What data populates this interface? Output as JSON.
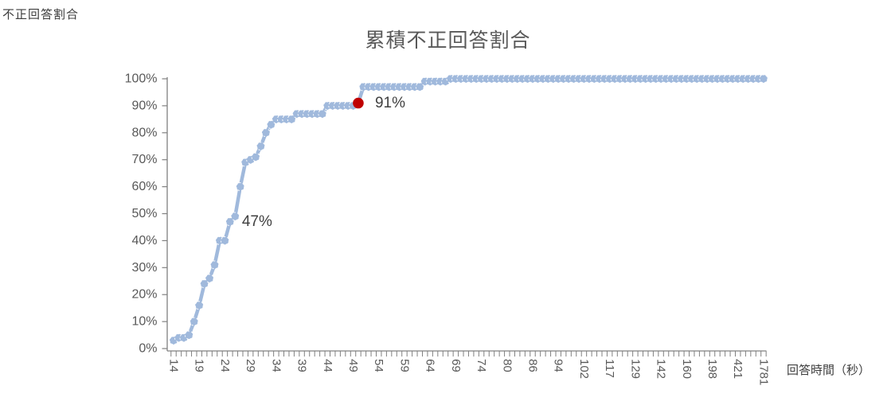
{
  "chart_data": {
    "type": "line",
    "title": "累積不正回答割合",
    "xlabel": "回答時間（秒）",
    "ylabel": "不正回答割合",
    "ylim": [
      0,
      100
    ],
    "y_tick_labels": [
      "0%",
      "10%",
      "20%",
      "30%",
      "40%",
      "50%",
      "60%",
      "70%",
      "80%",
      "90%",
      "100%"
    ],
    "x_tick_labels": [
      "14",
      "19",
      "24",
      "29",
      "34",
      "39",
      "44",
      "49",
      "54",
      "59",
      "64",
      "69",
      "74",
      "80",
      "86",
      "94",
      "102",
      "117",
      "129",
      "142",
      "160",
      "198",
      "421",
      "1781"
    ],
    "x_tick_label_interval": 5,
    "n_points": 116,
    "grid": "off",
    "legend": "none",
    "series": [
      {
        "name": "累積不正回答割合",
        "anchor_points_index_percent": [
          [
            0,
            3
          ],
          [
            1,
            4
          ],
          [
            2,
            4
          ],
          [
            3,
            5
          ],
          [
            4,
            10
          ],
          [
            5,
            16
          ],
          [
            6,
            24
          ],
          [
            7,
            26
          ],
          [
            8,
            31
          ],
          [
            9,
            40
          ],
          [
            10,
            40
          ],
          [
            11,
            47
          ],
          [
            12,
            49
          ],
          [
            13,
            60
          ],
          [
            14,
            69
          ],
          [
            15,
            70
          ],
          [
            16,
            71
          ],
          [
            17,
            75
          ],
          [
            18,
            80
          ],
          [
            19,
            83
          ],
          [
            20,
            85
          ],
          [
            23,
            85
          ],
          [
            24,
            87
          ],
          [
            29,
            87
          ],
          [
            30,
            90
          ],
          [
            35,
            90
          ],
          [
            36,
            91
          ],
          [
            37,
            97
          ],
          [
            48,
            97
          ],
          [
            49,
            99
          ],
          [
            53,
            99
          ],
          [
            54,
            100
          ],
          [
            115,
            100
          ]
        ]
      }
    ],
    "highlight_point": {
      "index": 36,
      "percent": 91,
      "near_x_label": "49",
      "label": "91%",
      "color": "#c00000"
    },
    "annotations": [
      {
        "text": "47%",
        "index": 11,
        "percent": 47,
        "near_x_label": "24"
      },
      {
        "text": "91%",
        "index": 36,
        "percent": 91,
        "near_x_label": "49"
      }
    ],
    "line_color": "#a0b9dc",
    "axis_color": "#808080",
    "tick_text_color": "#595959",
    "annotation_text_color": "#404040"
  }
}
